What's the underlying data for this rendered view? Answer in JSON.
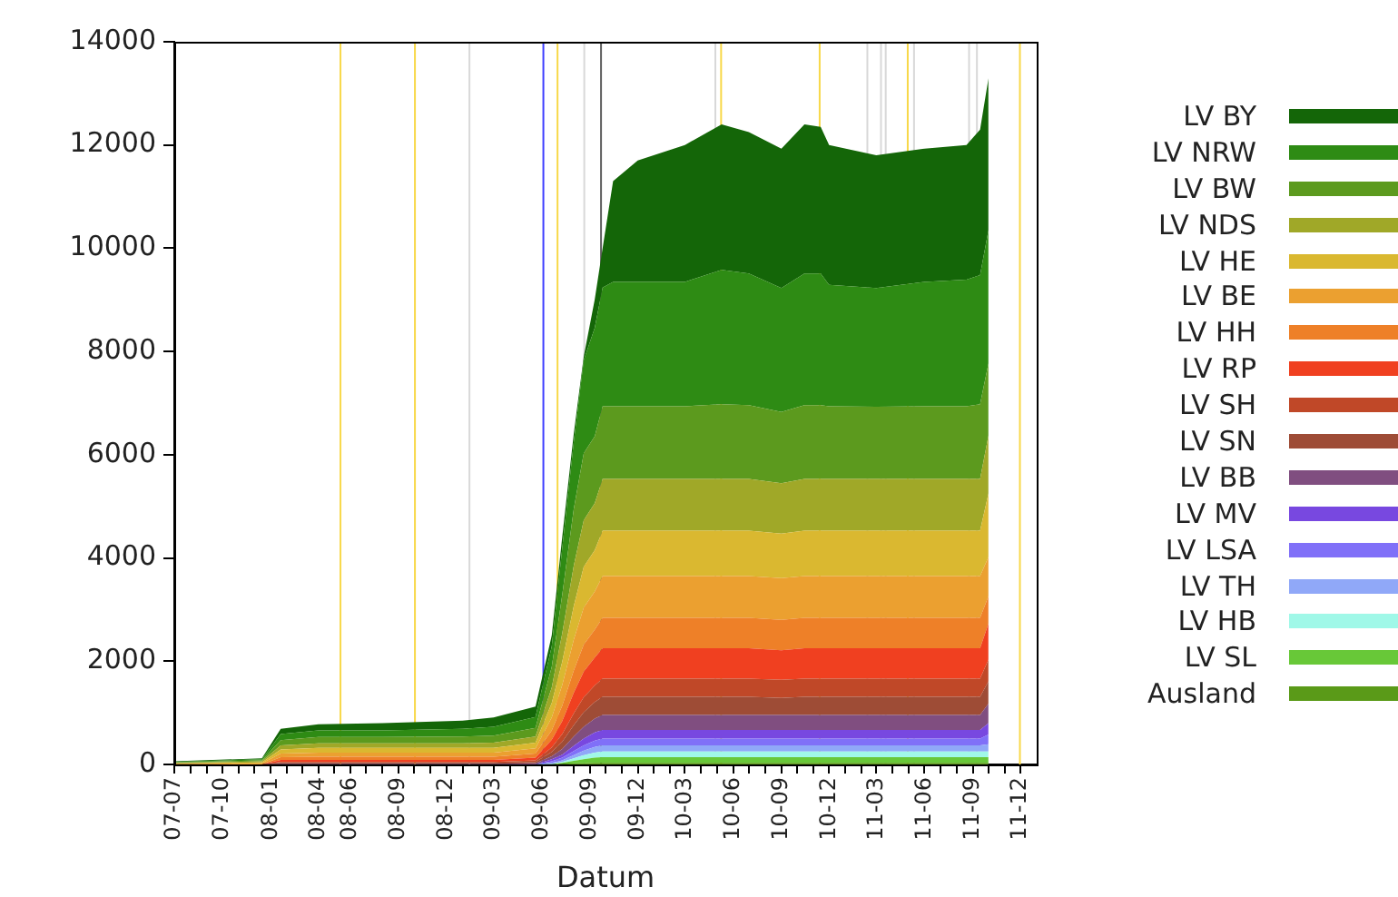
{
  "chart_data": {
    "type": "area",
    "stacked": true,
    "xlabel": "Datum",
    "legend": "right",
    "grid": false,
    "xlim": [
      "2007-07-01",
      "2012-01-01"
    ],
    "ylim": [
      0,
      14000
    ],
    "yticks": [
      0,
      2000,
      4000,
      6000,
      8000,
      10000,
      12000,
      14000
    ],
    "xticks": [
      {
        "value": "2007-07",
        "label": "07-07"
      },
      {
        "value": "2007-08",
        "label": null
      },
      {
        "value": "2007-09",
        "label": null
      },
      {
        "value": "2007-10",
        "label": "07-10"
      },
      {
        "value": "2007-11",
        "label": null
      },
      {
        "value": "2007-12",
        "label": null
      },
      {
        "value": "2008-01",
        "label": "08-01"
      },
      {
        "value": "2008-02",
        "label": null
      },
      {
        "value": "2008-03",
        "label": null
      },
      {
        "value": "2008-04",
        "label": "08-04"
      },
      {
        "value": "2008-05",
        "label": null
      },
      {
        "value": "2008-06",
        "label": "08-06"
      },
      {
        "value": "2008-07",
        "label": null
      },
      {
        "value": "2008-08",
        "label": null
      },
      {
        "value": "2008-09",
        "label": "08-09"
      },
      {
        "value": "2008-10",
        "label": null
      },
      {
        "value": "2008-11",
        "label": null
      },
      {
        "value": "2008-12",
        "label": "08-12"
      },
      {
        "value": "2009-01",
        "label": null
      },
      {
        "value": "2009-02",
        "label": null
      },
      {
        "value": "2009-03",
        "label": "09-03"
      },
      {
        "value": "2009-04",
        "label": null
      },
      {
        "value": "2009-05",
        "label": null
      },
      {
        "value": "2009-06",
        "label": "09-06"
      },
      {
        "value": "2009-07",
        "label": null
      },
      {
        "value": "2009-08",
        "label": null
      },
      {
        "value": "2009-09",
        "label": "09-09"
      },
      {
        "value": "2009-10",
        "label": null
      },
      {
        "value": "2009-11",
        "label": null
      },
      {
        "value": "2009-12",
        "label": "09-12"
      },
      {
        "value": "2010-01",
        "label": null
      },
      {
        "value": "2010-02",
        "label": null
      },
      {
        "value": "2010-03",
        "label": "10-03"
      },
      {
        "value": "2010-04",
        "label": null
      },
      {
        "value": "2010-05",
        "label": null
      },
      {
        "value": "2010-06",
        "label": "10-06"
      },
      {
        "value": "2010-07",
        "label": null
      },
      {
        "value": "2010-08",
        "label": null
      },
      {
        "value": "2010-09",
        "label": "10-09"
      },
      {
        "value": "2010-10",
        "label": null
      },
      {
        "value": "2010-11",
        "label": null
      },
      {
        "value": "2010-12",
        "label": "10-12"
      },
      {
        "value": "2011-01",
        "label": null
      },
      {
        "value": "2011-02",
        "label": null
      },
      {
        "value": "2011-03",
        "label": "11-03"
      },
      {
        "value": "2011-04",
        "label": null
      },
      {
        "value": "2011-05",
        "label": null
      },
      {
        "value": "2011-06",
        "label": "11-06"
      },
      {
        "value": "2011-07",
        "label": null
      },
      {
        "value": "2011-08",
        "label": null
      },
      {
        "value": "2011-09",
        "label": "11-09"
      },
      {
        "value": "2011-10",
        "label": null
      },
      {
        "value": "2011-11",
        "label": null
      },
      {
        "value": "2011-12",
        "label": "11-12"
      }
    ],
    "x": [
      "2007-07-01",
      "2007-12-15",
      "2008-01-20",
      "2008-04-01",
      "2008-08-01",
      "2009-01-01",
      "2009-03-01",
      "2009-05-20",
      "2009-06-20",
      "2009-07-10",
      "2009-08-01",
      "2009-08-20",
      "2009-09-10",
      "2009-09-25",
      "2009-10-15",
      "2009-12-01",
      "2010-03-01",
      "2010-05-10",
      "2010-07-01",
      "2010-09-01",
      "2010-10-15",
      "2010-11-15",
      "2010-12-01",
      "2011-03-01",
      "2011-06-01",
      "2011-08-20",
      "2011-09-15",
      "2011-10-01"
    ],
    "series": [
      {
        "name": "Ausland",
        "color": "#5a9a18",
        "values": [
          0,
          0,
          0,
          0,
          0,
          0,
          0,
          0,
          0,
          10,
          20,
          20,
          30,
          30,
          30,
          30,
          30,
          30,
          30,
          30,
          30,
          30,
          30,
          30,
          30,
          30,
          30,
          30
        ]
      },
      {
        "name": "LV SL",
        "color": "#68c838",
        "values": [
          0,
          0,
          0,
          0,
          0,
          0,
          0,
          0,
          0,
          20,
          50,
          80,
          100,
          110,
          110,
          110,
          110,
          110,
          110,
          110,
          110,
          110,
          110,
          110,
          110,
          110,
          110,
          110
        ]
      },
      {
        "name": "LV HB",
        "color": "#a0f8e8",
        "values": [
          0,
          0,
          0,
          0,
          0,
          0,
          0,
          0,
          10,
          20,
          50,
          80,
          100,
          110,
          110,
          110,
          110,
          110,
          110,
          110,
          110,
          110,
          110,
          110,
          110,
          110,
          110,
          110
        ]
      },
      {
        "name": "LV TH",
        "color": "#90a8f8",
        "values": [
          0,
          0,
          0,
          0,
          0,
          0,
          0,
          0,
          20,
          30,
          60,
          90,
          110,
          120,
          120,
          120,
          120,
          120,
          120,
          120,
          120,
          120,
          120,
          120,
          120,
          120,
          120,
          140
        ]
      },
      {
        "name": "LV LSA",
        "color": "#8070f8",
        "values": [
          0,
          0,
          0,
          0,
          0,
          0,
          0,
          0,
          30,
          50,
          80,
          100,
          120,
          130,
          130,
          130,
          130,
          130,
          130,
          130,
          130,
          130,
          130,
          130,
          130,
          130,
          130,
          190
        ]
      },
      {
        "name": "LV MV",
        "color": "#7848e0",
        "values": [
          0,
          0,
          0,
          0,
          0,
          0,
          0,
          0,
          40,
          60,
          100,
          130,
          160,
          170,
          170,
          170,
          170,
          170,
          170,
          170,
          170,
          170,
          170,
          170,
          170,
          170,
          170,
          220
        ]
      },
      {
        "name": "LV BB",
        "color": "#804e80",
        "values": [
          0,
          0,
          10,
          10,
          10,
          10,
          10,
          20,
          60,
          110,
          180,
          230,
          270,
          290,
          290,
          290,
          290,
          290,
          290,
          290,
          290,
          290,
          290,
          290,
          290,
          290,
          290,
          380
        ]
      },
      {
        "name": "LV SN",
        "color": "#9e4c36",
        "values": [
          0,
          0,
          20,
          20,
          20,
          20,
          20,
          30,
          80,
          140,
          220,
          280,
          320,
          350,
          350,
          350,
          350,
          350,
          350,
          330,
          350,
          350,
          350,
          350,
          350,
          350,
          350,
          430
        ]
      },
      {
        "name": "LV SH",
        "color": "#c04828",
        "values": [
          0,
          0,
          20,
          20,
          20,
          20,
          20,
          30,
          90,
          150,
          230,
          290,
          320,
          350,
          350,
          350,
          350,
          350,
          350,
          350,
          350,
          350,
          350,
          350,
          350,
          350,
          350,
          420
        ]
      },
      {
        "name": "LV RP",
        "color": "#f04020",
        "values": [
          0,
          0,
          40,
          40,
          40,
          40,
          40,
          50,
          150,
          250,
          400,
          500,
          540,
          590,
          590,
          590,
          590,
          590,
          590,
          570,
          590,
          590,
          590,
          590,
          590,
          590,
          590,
          700
        ]
      },
      {
        "name": "LV HH",
        "color": "#ee8028",
        "values": [
          0,
          0,
          50,
          60,
          60,
          60,
          60,
          80,
          180,
          300,
          430,
          520,
          540,
          590,
          590,
          590,
          590,
          590,
          590,
          590,
          590,
          590,
          590,
          590,
          590,
          590,
          590,
          530
        ]
      },
      {
        "name": "LV BE",
        "color": "#eba030",
        "values": [
          10,
          20,
          70,
          80,
          80,
          80,
          80,
          100,
          250,
          400,
          600,
          720,
          740,
          810,
          810,
          810,
          810,
          810,
          810,
          810,
          810,
          810,
          810,
          810,
          810,
          810,
          810,
          760
        ]
      },
      {
        "name": "LV HE",
        "color": "#dab830",
        "values": [
          10,
          20,
          80,
          90,
          90,
          90,
          90,
          110,
          280,
          450,
          650,
          790,
          800,
          880,
          880,
          880,
          880,
          880,
          880,
          860,
          880,
          880,
          880,
          880,
          880,
          880,
          880,
          1230
        ]
      },
      {
        "name": "LV NDS",
        "color": "#a0a828",
        "values": [
          10,
          20,
          80,
          90,
          90,
          90,
          100,
          120,
          300,
          550,
          780,
          900,
          910,
          1000,
          1000,
          1000,
          1000,
          1000,
          1000,
          980,
          1000,
          1000,
          1000,
          1000,
          1000,
          1000,
          1000,
          1120
        ]
      },
      {
        "name": "LV BW",
        "color": "#5c9a1e",
        "values": [
          10,
          20,
          100,
          120,
          120,
          130,
          140,
          170,
          400,
          750,
          1100,
          1300,
          1300,
          1410,
          1410,
          1410,
          1410,
          1450,
          1430,
          1380,
          1430,
          1430,
          1410,
          1400,
          1410,
          1410,
          1450,
          1400
        ]
      },
      {
        "name": "LV NRW",
        "color": "#2e8b14",
        "values": [
          10,
          20,
          120,
          130,
          130,
          150,
          170,
          210,
          400,
          900,
          1300,
          1800,
          2100,
          2300,
          2410,
          2410,
          2410,
          2600,
          2550,
          2400,
          2550,
          2550,
          2350,
          2300,
          2410,
          2450,
          2500,
          2580
        ]
      },
      {
        "name": "LV BY",
        "color": "#146608",
        "values": [
          10,
          20,
          100,
          120,
          140,
          160,
          180,
          200,
          210,
          220,
          160,
          70,
          550,
          760,
          1950,
          2350,
          2650,
          2820,
          2740,
          2700,
          2890,
          2840,
          2710,
          2570,
          2580,
          2610,
          2820,
          2940
        ]
      }
    ],
    "ref_lines": [
      {
        "axis": "x",
        "value": "2008-05-13",
        "color": "#f8d848"
      },
      {
        "axis": "x",
        "value": "2008-10-02",
        "color": "#f8d848"
      },
      {
        "axis": "x",
        "value": "2009-01-14",
        "color": "#d8d8d8"
      },
      {
        "axis": "x",
        "value": "2009-06-04",
        "color": "#4040ff"
      },
      {
        "axis": "x",
        "value": "2009-07-01",
        "color": "#f8d848"
      },
      {
        "axis": "x",
        "value": "2009-08-21",
        "color": "#d8d8d8"
      },
      {
        "axis": "x",
        "value": "2009-09-22",
        "color": "#606060"
      },
      {
        "axis": "x",
        "value": "2010-04-28",
        "color": "#d8d8d8"
      },
      {
        "axis": "x",
        "value": "2010-05-09",
        "color": "#f8d848"
      },
      {
        "axis": "x",
        "value": "2010-11-13",
        "color": "#f8d848"
      },
      {
        "axis": "x",
        "value": "2011-02-12",
        "color": "#d8d8d8"
      },
      {
        "axis": "x",
        "value": "2011-03-10",
        "color": "#d8d8d8"
      },
      {
        "axis": "x",
        "value": "2011-03-19",
        "color": "#d8d8d8"
      },
      {
        "axis": "x",
        "value": "2011-04-30",
        "color": "#f8d848"
      },
      {
        "axis": "x",
        "value": "2011-05-12",
        "color": "#d8d8d8"
      },
      {
        "axis": "x",
        "value": "2011-08-25",
        "color": "#d8d8d8"
      },
      {
        "axis": "x",
        "value": "2011-09-09",
        "color": "#d8d8d8"
      },
      {
        "axis": "x",
        "value": "2011-11-30",
        "color": "#f8d848"
      }
    ]
  }
}
